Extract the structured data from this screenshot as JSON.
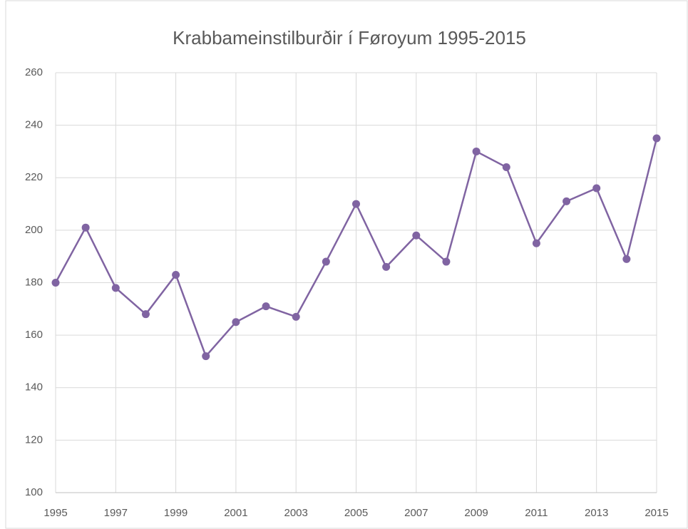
{
  "chart_data": {
    "type": "line",
    "title": "Krabbameinstilburðir í Føroyum 1995-2015",
    "x": [
      1995,
      1996,
      1997,
      1998,
      1999,
      2000,
      2001,
      2002,
      2003,
      2004,
      2005,
      2006,
      2007,
      2008,
      2009,
      2010,
      2011,
      2012,
      2013,
      2014,
      2015
    ],
    "values": [
      180,
      201,
      178,
      168,
      183,
      152,
      165,
      171,
      167,
      188,
      210,
      186,
      198,
      188,
      230,
      224,
      195,
      211,
      216,
      189,
      235
    ],
    "color": "#8064a2",
    "xlim": [
      1995,
      2015
    ],
    "xticks": [
      1995,
      1997,
      1999,
      2001,
      2003,
      2005,
      2007,
      2009,
      2011,
      2013,
      2015
    ],
    "ylim": [
      100,
      260
    ],
    "yticks": [
      100,
      120,
      140,
      160,
      180,
      200,
      220,
      240,
      260
    ],
    "grid": true
  }
}
